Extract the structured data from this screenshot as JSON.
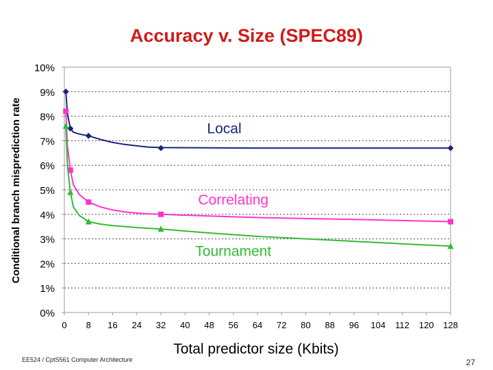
{
  "slide": {
    "title": "Accuracy v. Size (SPEC89)",
    "footer_left": "EE524 / CptS561 Computer Architecture",
    "page_number": "27"
  },
  "colors": {
    "title": "#d11a1a",
    "local": "#1a237e",
    "correlating": "#ff33cc",
    "tournament": "#33bb33"
  },
  "chart_data": {
    "type": "line",
    "title": "",
    "xlabel": "Total predictor size (Kbits)",
    "ylabel": "Conditional branch misprediction rate",
    "xlim": [
      0,
      128
    ],
    "ylim": [
      0,
      10
    ],
    "x_ticks": [
      "0",
      "8",
      "16",
      "24",
      "32",
      "40",
      "48",
      "56",
      "64",
      "72",
      "80",
      "88",
      "96",
      "104",
      "112",
      "120",
      "128"
    ],
    "x_tick_values": [
      0,
      8,
      16,
      24,
      32,
      40,
      48,
      56,
      64,
      72,
      80,
      88,
      96,
      104,
      112,
      120,
      128
    ],
    "y_ticks": [
      "0%",
      "1%",
      "2%",
      "3%",
      "4%",
      "5%",
      "6%",
      "7%",
      "8%",
      "9%",
      "10%"
    ],
    "y_tick_values": [
      0,
      1,
      2,
      3,
      4,
      5,
      6,
      7,
      8,
      9,
      10
    ],
    "grid": "horizontal dotted",
    "legend": "inline labels",
    "series": [
      {
        "name": "Local",
        "color": "#1a237e",
        "marker": "diamond",
        "x": [
          0.5,
          2,
          8,
          32,
          128
        ],
        "y": [
          9.0,
          7.5,
          7.2,
          6.7,
          6.7
        ],
        "curve_x": [
          0.5,
          1,
          2,
          3,
          5,
          8,
          12,
          16,
          20,
          24,
          28,
          32,
          48,
          64,
          96,
          128
        ],
        "curve_y": [
          9.0,
          8.1,
          7.5,
          7.35,
          7.27,
          7.2,
          7.05,
          6.93,
          6.85,
          6.79,
          6.74,
          6.72,
          6.71,
          6.7,
          6.7,
          6.7
        ]
      },
      {
        "name": "Correlating",
        "color": "#ff33cc",
        "marker": "square",
        "x": [
          0.5,
          2,
          8,
          32,
          128
        ],
        "y": [
          8.2,
          5.8,
          4.5,
          4.0,
          3.7
        ],
        "curve_x": [
          0.5,
          1,
          2,
          3,
          5,
          8,
          12,
          16,
          20,
          24,
          28,
          32,
          48,
          64,
          96,
          128
        ],
        "curve_y": [
          8.2,
          6.8,
          5.8,
          5.2,
          4.8,
          4.5,
          4.3,
          4.18,
          4.1,
          4.05,
          4.02,
          4.0,
          3.93,
          3.87,
          3.79,
          3.7
        ],
        "label_offset": "right-of-curve"
      },
      {
        "name": "Tournament",
        "color": "#33bb33",
        "marker": "triangle",
        "x": [
          0.5,
          2,
          8,
          32,
          128
        ],
        "y": [
          7.6,
          4.9,
          3.7,
          3.4,
          2.7
        ],
        "curve_x": [
          0.5,
          1,
          2,
          3,
          5,
          8,
          12,
          16,
          24,
          32,
          48,
          64,
          96,
          128
        ],
        "curve_y": [
          7.6,
          6.0,
          4.9,
          4.3,
          3.95,
          3.7,
          3.6,
          3.54,
          3.46,
          3.4,
          3.24,
          3.1,
          2.9,
          2.7
        ]
      }
    ],
    "series_labels": [
      {
        "text": "Local",
        "color": "#1a237e",
        "at_x": 53,
        "at_y": 7.3
      },
      {
        "text": "Correlating",
        "color": "#ff33cc",
        "at_x": 56,
        "at_y": 4.4
      },
      {
        "text": "Tournament",
        "color": "#33bb33",
        "at_x": 56,
        "at_y": 2.3
      }
    ]
  }
}
